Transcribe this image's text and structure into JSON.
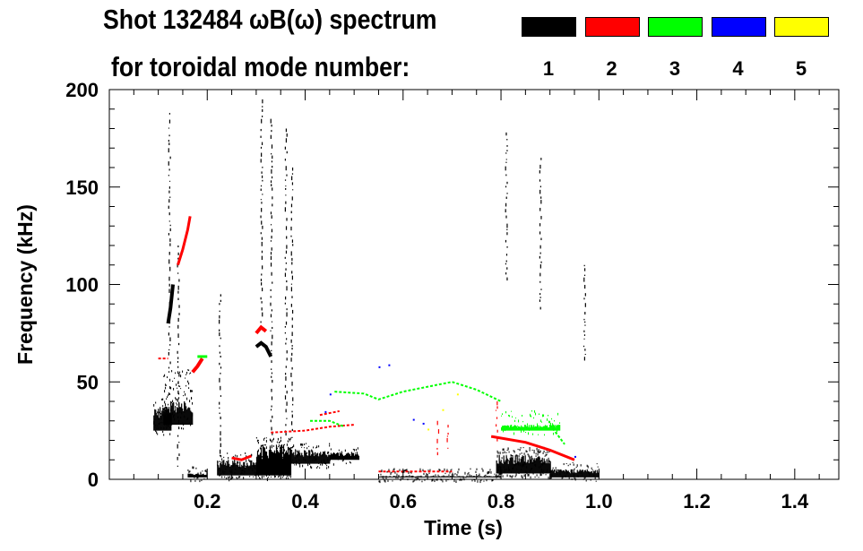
{
  "chart_data": {
    "type": "heatmap",
    "title": "Shot 132484 ωB(ω) spectrum",
    "subtitle": "for toroidal mode number:",
    "xlabel": "Time (s)",
    "ylabel": "Frequency (kHz)",
    "xlim": [
      0,
      1.49
    ],
    "ylim": [
      0,
      200
    ],
    "xticks": [
      0.2,
      0.4,
      0.6,
      0.8,
      1.0,
      1.2,
      1.4
    ],
    "xtick_labels": [
      "0.2",
      "0.4",
      "0.6",
      "0.8",
      "1.0",
      "1.2",
      "1.4"
    ],
    "yticks": [
      0,
      50,
      100,
      150,
      200
    ],
    "ytick_labels": [
      "0",
      "50",
      "100",
      "150",
      "200"
    ],
    "legend": [
      {
        "mode": "1",
        "color": "#000000"
      },
      {
        "mode": "2",
        "color": "#ff0000"
      },
      {
        "mode": "3",
        "color": "#00ff00"
      },
      {
        "mode": "4",
        "color": "#0000ff"
      },
      {
        "mode": "5",
        "color": "#ffff00"
      }
    ],
    "legend_placement": "top-right",
    "features": [
      {
        "mode": 1,
        "kind": "blob",
        "t": [
          0.09,
          0.125
        ],
        "f": [
          25,
          40
        ],
        "density": 0.8
      },
      {
        "mode": 1,
        "kind": "blob",
        "t": [
          0.11,
          0.17
        ],
        "f": [
          28,
          55
        ],
        "density": 0.45
      },
      {
        "mode": 1,
        "kind": "line",
        "pts": [
          [
            0.12,
            80
          ],
          [
            0.125,
            88
          ],
          [
            0.13,
            100
          ]
        ],
        "width": 4
      },
      {
        "mode": 1,
        "kind": "blob",
        "t": [
          0.16,
          0.2
        ],
        "f": [
          1,
          6
        ],
        "density": 0.5
      },
      {
        "mode": 1,
        "kind": "blob",
        "t": [
          0.22,
          0.3
        ],
        "f": [
          2,
          12
        ],
        "density": 0.8
      },
      {
        "mode": 1,
        "kind": "blob",
        "t": [
          0.3,
          0.37
        ],
        "f": [
          2,
          20
        ],
        "density": 0.9
      },
      {
        "mode": 1,
        "kind": "blob",
        "t": [
          0.37,
          0.45
        ],
        "f": [
          8,
          17
        ],
        "density": 0.8
      },
      {
        "mode": 1,
        "kind": "blob",
        "t": [
          0.45,
          0.51
        ],
        "f": [
          10,
          15
        ],
        "density": 0.8
      },
      {
        "mode": 1,
        "kind": "line",
        "pts": [
          [
            0.3,
            68
          ],
          [
            0.31,
            70
          ],
          [
            0.32,
            68
          ],
          [
            0.33,
            63
          ]
        ],
        "width": 4
      },
      {
        "mode": 1,
        "kind": "blob",
        "t": [
          0.79,
          0.9
        ],
        "f": [
          3,
          15
        ],
        "density": 0.8
      },
      {
        "mode": 1,
        "kind": "blob",
        "t": [
          0.9,
          1.0
        ],
        "f": [
          1,
          7
        ],
        "density": 0.7
      },
      {
        "mode": 1,
        "kind": "blob",
        "t": [
          0.55,
          0.8
        ],
        "f": [
          1,
          4
        ],
        "density": 0.25
      },
      {
        "mode": 1,
        "kind": "streak",
        "t": 0.122,
        "f": [
          55,
          188
        ]
      },
      {
        "mode": 1,
        "kind": "streak",
        "t": 0.14,
        "f": [
          5,
          120
        ]
      },
      {
        "mode": 1,
        "kind": "streak",
        "t": 0.225,
        "f": [
          10,
          95
        ]
      },
      {
        "mode": 1,
        "kind": "streak",
        "t": 0.31,
        "f": [
          80,
          195
        ]
      },
      {
        "mode": 1,
        "kind": "streak",
        "t": 0.33,
        "f": [
          20,
          185
        ]
      },
      {
        "mode": 1,
        "kind": "streak",
        "t": 0.36,
        "f": [
          20,
          180
        ]
      },
      {
        "mode": 1,
        "kind": "streak",
        "t": 0.372,
        "f": [
          20,
          160
        ]
      },
      {
        "mode": 1,
        "kind": "streak",
        "t": 0.81,
        "f": [
          100,
          178
        ]
      },
      {
        "mode": 1,
        "kind": "streak",
        "t": 0.88,
        "f": [
          85,
          165
        ]
      },
      {
        "mode": 1,
        "kind": "streak",
        "t": 0.97,
        "f": [
          60,
          110
        ]
      },
      {
        "mode": 2,
        "kind": "line",
        "pts": [
          [
            0.14,
            110
          ],
          [
            0.15,
            118
          ],
          [
            0.16,
            128
          ],
          [
            0.165,
            135
          ]
        ],
        "width": 3
      },
      {
        "mode": 2,
        "kind": "line",
        "pts": [
          [
            0.17,
            55
          ],
          [
            0.18,
            58
          ],
          [
            0.19,
            62
          ]
        ],
        "width": 4
      },
      {
        "mode": 2,
        "kind": "line",
        "pts": [
          [
            0.1,
            62
          ],
          [
            0.12,
            62
          ]
        ],
        "width": 2
      },
      {
        "mode": 2,
        "kind": "line",
        "pts": [
          [
            0.3,
            75
          ],
          [
            0.31,
            78
          ],
          [
            0.32,
            76
          ]
        ],
        "width": 4
      },
      {
        "mode": 2,
        "kind": "line",
        "pts": [
          [
            0.25,
            11
          ],
          [
            0.27,
            10
          ],
          [
            0.29,
            12
          ]
        ],
        "width": 3
      },
      {
        "mode": 2,
        "kind": "line",
        "pts": [
          [
            0.33,
            24
          ],
          [
            0.4,
            25
          ],
          [
            0.45,
            27
          ],
          [
            0.5,
            28
          ]
        ],
        "width": 2
      },
      {
        "mode": 2,
        "kind": "line",
        "pts": [
          [
            0.43,
            33
          ],
          [
            0.47,
            35
          ]
        ],
        "width": 2
      },
      {
        "mode": 2,
        "kind": "line",
        "pts": [
          [
            0.78,
            22
          ],
          [
            0.85,
            19
          ],
          [
            0.9,
            15
          ],
          [
            0.95,
            10
          ]
        ],
        "width": 3
      },
      {
        "mode": 2,
        "kind": "streak",
        "t": 0.67,
        "f": [
          12,
          30
        ]
      },
      {
        "mode": 2,
        "kind": "streak",
        "t": 0.69,
        "f": [
          14,
          28
        ]
      },
      {
        "mode": 2,
        "kind": "streak",
        "t": 0.79,
        "f": [
          20,
          40
        ]
      },
      {
        "mode": 2,
        "kind": "line",
        "pts": [
          [
            0.55,
            4
          ],
          [
            0.7,
            4
          ]
        ],
        "width": 2
      },
      {
        "mode": 3,
        "kind": "line",
        "pts": [
          [
            0.46,
            45
          ],
          [
            0.52,
            44
          ],
          [
            0.55,
            41
          ],
          [
            0.6,
            45
          ],
          [
            0.66,
            48
          ],
          [
            0.7,
            50
          ],
          [
            0.75,
            46
          ],
          [
            0.8,
            40
          ]
        ],
        "width": 2
      },
      {
        "mode": 3,
        "kind": "line",
        "pts": [
          [
            0.41,
            30
          ],
          [
            0.45,
            30
          ],
          [
            0.48,
            27
          ]
        ],
        "width": 2
      },
      {
        "mode": 3,
        "kind": "line",
        "pts": [
          [
            0.18,
            63
          ],
          [
            0.2,
            63
          ]
        ],
        "width": 3
      },
      {
        "mode": 3,
        "kind": "blob",
        "t": [
          0.8,
          0.92
        ],
        "f": [
          25,
          34
        ],
        "density": 0.35
      },
      {
        "mode": 3,
        "kind": "line",
        "pts": [
          [
            0.9,
            28
          ],
          [
            0.93,
            18
          ]
        ],
        "width": 2
      },
      {
        "mode": 4,
        "kind": "dots",
        "pts": [
          [
            0.55,
            58
          ],
          [
            0.57,
            59
          ],
          [
            0.62,
            31
          ],
          [
            0.64,
            29
          ],
          [
            0.45,
            44
          ],
          [
            0.44,
            35
          ],
          [
            0.95,
            12
          ]
        ]
      },
      {
        "mode": 5,
        "kind": "dots",
        "pts": [
          [
            0.68,
            36
          ],
          [
            0.65,
            26
          ],
          [
            0.71,
            44
          ]
        ]
      }
    ]
  }
}
